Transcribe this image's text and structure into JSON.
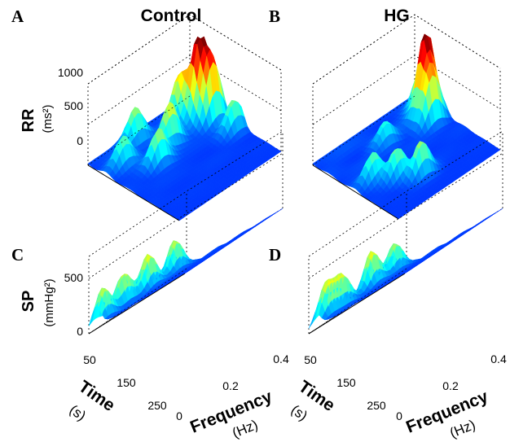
{
  "chart_data": [
    {
      "panel": "A",
      "title": "Control",
      "type": "surface",
      "zlabel": "RR",
      "zunit": "(ms²)",
      "zticks": [
        "0",
        "500",
        "1000"
      ],
      "zlim": [
        0,
        1000
      ],
      "colormap": "jet",
      "peaks": [
        {
          "frequency": 0.1,
          "time": 40,
          "power": 1000
        },
        {
          "frequency": 0.14,
          "time": 30,
          "power": 750
        },
        {
          "frequency": 0.06,
          "time": 70,
          "power": 550
        },
        {
          "frequency": 0.22,
          "time": 20,
          "power": 380
        },
        {
          "frequency": 0.12,
          "time": 140,
          "power": 520
        },
        {
          "frequency": 0.03,
          "time": 180,
          "power": 400
        },
        {
          "frequency": 0.16,
          "time": 200,
          "power": 430
        },
        {
          "frequency": 0.08,
          "time": 250,
          "power": 350
        }
      ]
    },
    {
      "panel": "B",
      "title": "HG",
      "type": "surface",
      "zlim": [
        0,
        1000
      ],
      "colormap": "jet",
      "peaks": [
        {
          "frequency": 0.1,
          "time": 30,
          "power": 1000
        },
        {
          "frequency": 0.14,
          "time": 40,
          "power": 600
        },
        {
          "frequency": 0.06,
          "time": 20,
          "power": 420
        },
        {
          "frequency": 0.3,
          "time": 170,
          "power": 430
        },
        {
          "frequency": 0.25,
          "time": 210,
          "power": 360
        },
        {
          "frequency": 0.2,
          "time": 250,
          "power": 340
        },
        {
          "frequency": 0.1,
          "time": 150,
          "power": 260
        }
      ]
    },
    {
      "panel": "C",
      "type": "surface",
      "zlabel": "SP",
      "zunit": "(mmHg²)",
      "zticks": [
        "0",
        "500"
      ],
      "zlim": [
        0,
        700
      ],
      "xlabel": "Frequency",
      "xunit": "(Hz)",
      "xticks": [
        "0",
        "0.2",
        "0.4"
      ],
      "xlim": [
        0,
        0.4
      ],
      "ylabel": "Time",
      "yunit": "(s)",
      "yticks": [
        "50",
        "150",
        "250"
      ],
      "ylim": [
        0,
        300
      ],
      "colormap": "jet",
      "peaks": [
        {
          "frequency": 0.03,
          "time": 60,
          "power": 330
        },
        {
          "frequency": 0.03,
          "time": 140,
          "power": 370
        },
        {
          "frequency": 0.02,
          "time": 210,
          "power": 320
        },
        {
          "frequency": 0.03,
          "time": 280,
          "power": 330
        }
      ]
    },
    {
      "panel": "D",
      "type": "surface",
      "zlim": [
        0,
        700
      ],
      "xlabel": "Frequency",
      "xunit": "(Hz)",
      "xticks": [
        "0",
        "0.2",
        "0.4"
      ],
      "xlim": [
        0,
        0.4
      ],
      "ylabel": "Time",
      "yunit": "(s)",
      "yticks": [
        "50",
        "150",
        "250"
      ],
      "ylim": [
        0,
        300
      ],
      "colormap": "jet",
      "peaks": [
        {
          "frequency": 0.03,
          "time": 60,
          "power": 300
        },
        {
          "frequency": 0.03,
          "time": 130,
          "power": 380
        },
        {
          "frequency": 0.03,
          "time": 220,
          "power": 310
        },
        {
          "frequency": 0.03,
          "time": 270,
          "power": 340
        }
      ]
    }
  ]
}
